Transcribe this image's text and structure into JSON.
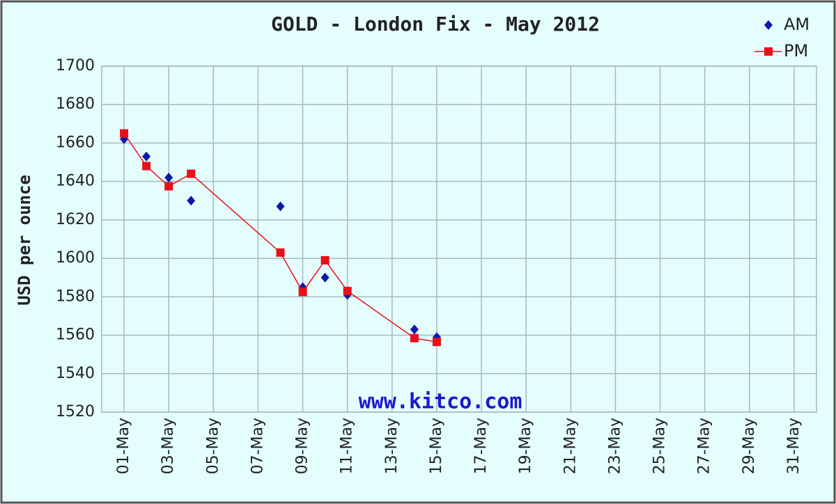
{
  "chart_data": {
    "type": "scatter-line",
    "title": "GOLD - London Fix - May 2012",
    "y_label": "USD per ounce",
    "annotation": "www.kitco.com",
    "x": [
      1,
      2,
      3,
      4,
      8,
      9,
      10,
      11,
      14,
      15
    ],
    "series": [
      {
        "name": "AM",
        "color": "#0a1aa8",
        "marker": "diamond",
        "line": false,
        "values": [
          1662,
          1653,
          1642,
          1630,
          1627,
          1585,
          1590,
          1581,
          1563,
          1559
        ]
      },
      {
        "name": "PM",
        "color": "#e8101a",
        "marker": "square",
        "line": true,
        "values": [
          1665,
          1648,
          1637.5,
          1644,
          1603,
          1582.5,
          1599,
          1583,
          1558.5,
          1556.5
        ]
      }
    ],
    "xlim": [
      0,
      32
    ],
    "xticks": [
      {
        "value": 1,
        "label": "01-May"
      },
      {
        "value": 3,
        "label": "03-May"
      },
      {
        "value": 5,
        "label": "05-May"
      },
      {
        "value": 7,
        "label": "07-May"
      },
      {
        "value": 9,
        "label": "09-May"
      },
      {
        "value": 11,
        "label": "11-May"
      },
      {
        "value": 13,
        "label": "13-May"
      },
      {
        "value": 15,
        "label": "15-May"
      },
      {
        "value": 17,
        "label": "17-May"
      },
      {
        "value": 19,
        "label": "19-May"
      },
      {
        "value": 21,
        "label": "21-May"
      },
      {
        "value": 23,
        "label": "23-May"
      },
      {
        "value": 25,
        "label": "25-May"
      },
      {
        "value": 27,
        "label": "27-May"
      },
      {
        "value": 29,
        "label": "29-May"
      },
      {
        "value": 31,
        "label": "31-May"
      }
    ],
    "ylim": [
      1520,
      1700
    ],
    "yticks": [
      1520,
      1540,
      1560,
      1580,
      1600,
      1620,
      1640,
      1660,
      1680,
      1700
    ],
    "grid": true,
    "legend": "top-right"
  }
}
